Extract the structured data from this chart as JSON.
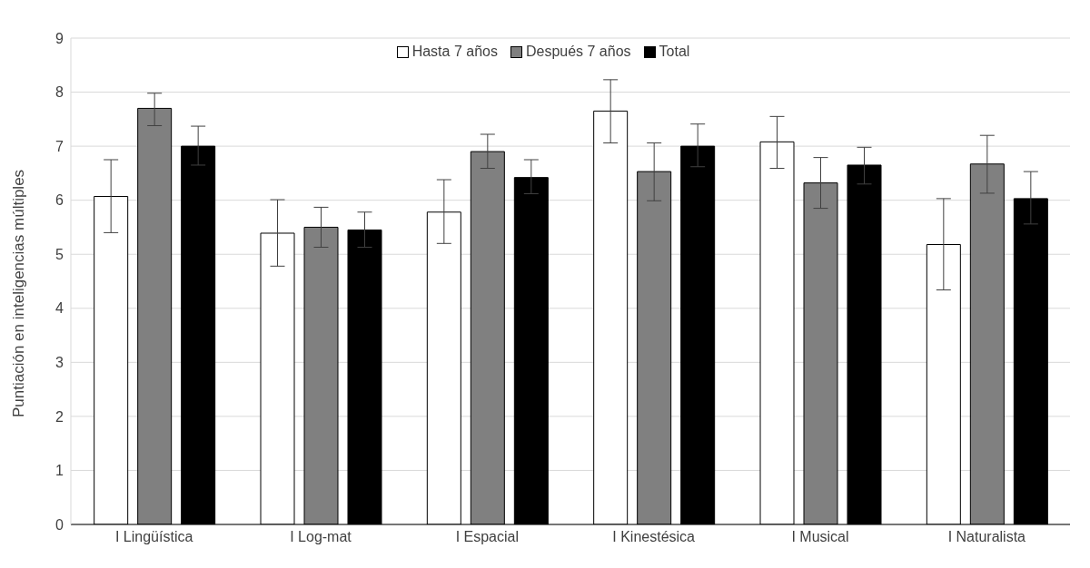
{
  "chart_data": {
    "type": "bar",
    "ylabel": "Puntiación en inteligencias múltiples",
    "categories": [
      "I Lingüística",
      "I Log-mat",
      "I Espacial",
      "I Kinestésica",
      "I Musical",
      "I Naturalista"
    ],
    "series": [
      {
        "name": "Hasta 7 años",
        "color": "#ffffff",
        "values": [
          6.07,
          5.39,
          5.78,
          7.65,
          7.08,
          5.18
        ],
        "errors": [
          [
            5.4,
            6.75
          ],
          [
            4.78,
            6.01
          ],
          [
            5.2,
            6.38
          ],
          [
            7.06,
            8.23
          ],
          [
            6.59,
            7.55
          ],
          [
            4.34,
            6.03
          ]
        ]
      },
      {
        "name": "Después 7 años",
        "color": "#808080",
        "values": [
          7.7,
          5.5,
          6.9,
          6.53,
          6.32,
          6.67
        ],
        "errors": [
          [
            7.38,
            7.98
          ],
          [
            5.13,
            5.87
          ],
          [
            6.59,
            7.22
          ],
          [
            5.99,
            7.06
          ],
          [
            5.85,
            6.79
          ],
          [
            6.13,
            7.2
          ]
        ]
      },
      {
        "name": "Total",
        "color": "#000000",
        "values": [
          7.0,
          5.45,
          6.42,
          7.0,
          6.65,
          6.03
        ],
        "errors": [
          [
            6.65,
            7.37
          ],
          [
            5.13,
            5.78
          ],
          [
            6.12,
            6.75
          ],
          [
            6.62,
            7.41
          ],
          [
            6.3,
            6.98
          ],
          [
            5.56,
            6.53
          ]
        ]
      }
    ],
    "ylim": [
      0,
      9
    ],
    "yticks": [
      0,
      1,
      2,
      3,
      4,
      5,
      6,
      7,
      8,
      9
    ],
    "grid": "y",
    "legend": "top"
  }
}
